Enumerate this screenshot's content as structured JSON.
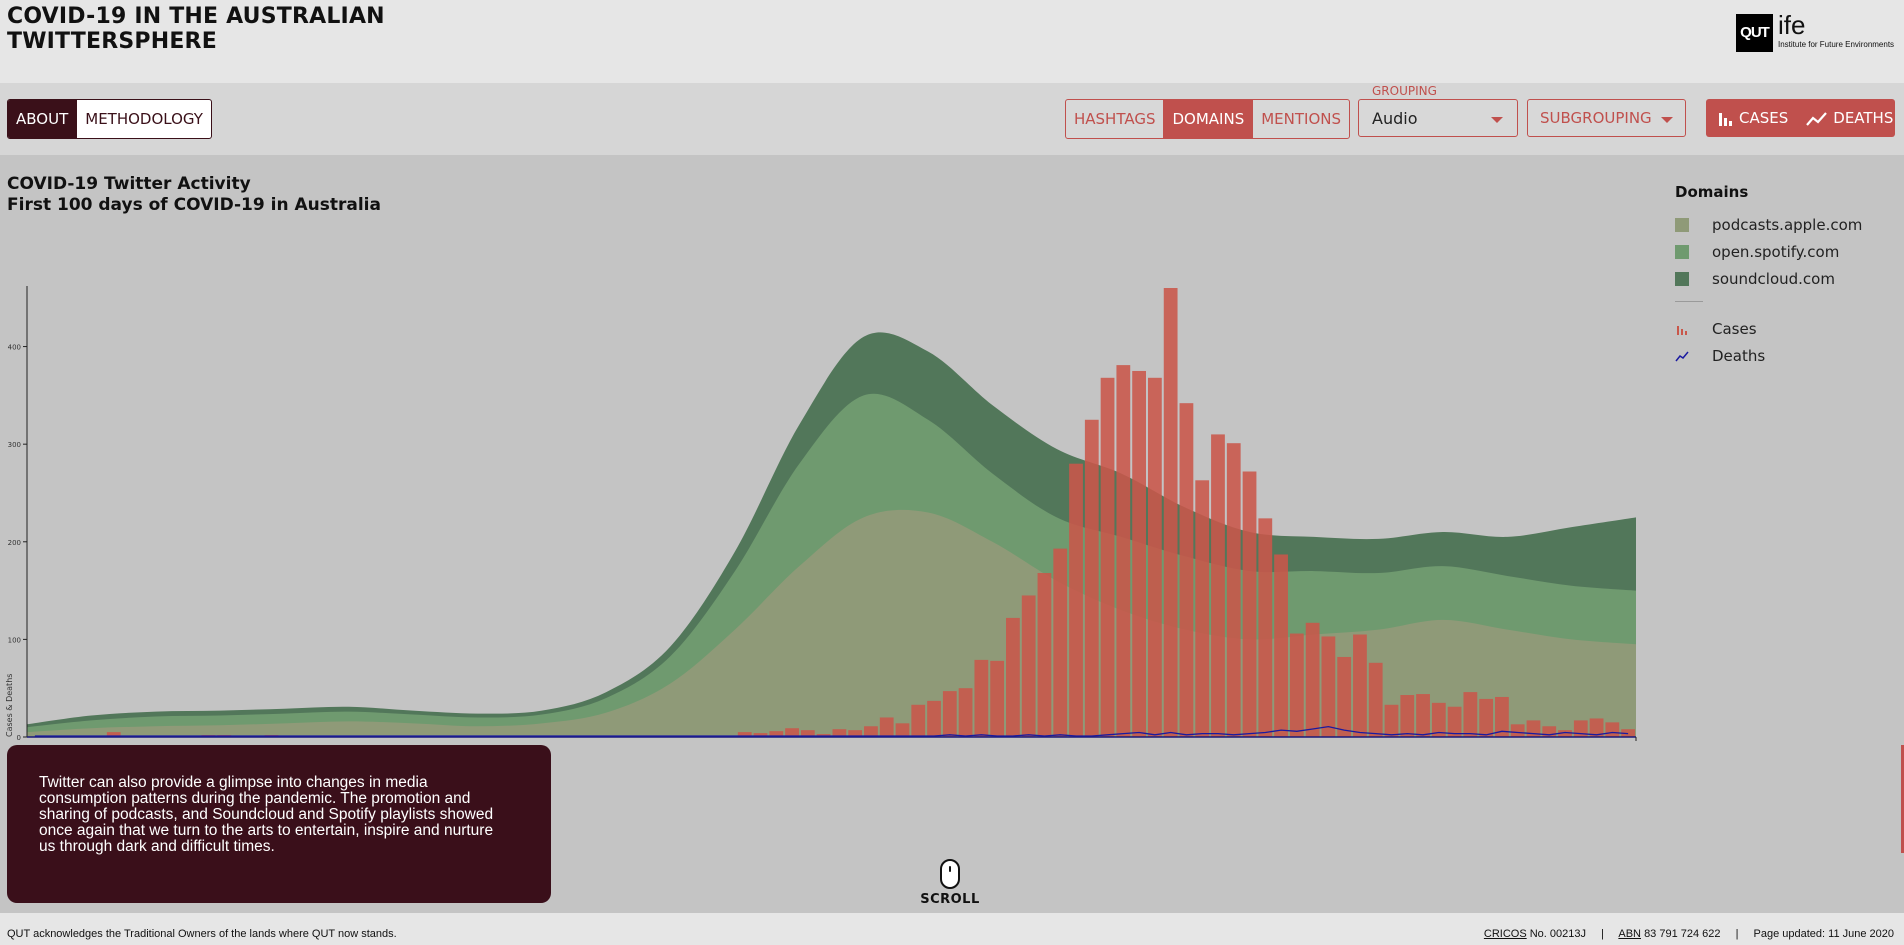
{
  "site": {
    "title_line1": "COVID-19 IN THE AUSTRALIAN",
    "title_line2": "TWITTERSPHERE",
    "logo_box": "QUT",
    "logo_ife": "ife",
    "logo_sub": "Institute for Future Environments"
  },
  "toolbar": {
    "about_label": "ABOUT",
    "methodology_label": "METHODOLOGY",
    "hashtags_label": "HASHTAGS",
    "domains_label": "DOMAINS",
    "mentions_label": "MENTIONS",
    "grouping_label": "GROUPING",
    "grouping_value": "Audio",
    "subgrouping_label": "SUBGROUPING",
    "cases_label": "CASES",
    "deaths_label": "DEATHS",
    "active_view": "DOMAINS",
    "accent_color": "#c0504d",
    "about_color": "#3a1019"
  },
  "chart_heading": {
    "line1": "COVID-19 Twitter Activity",
    "line2": "First 100 days of COVID-19 in Australia"
  },
  "legend": {
    "title": "Domains",
    "items": [
      {
        "label": "podcasts.apple.com",
        "color": "#8f9a78"
      },
      {
        "label": "open.spotify.com",
        "color": "#6f9a6f"
      },
      {
        "label": "soundcloud.com",
        "color": "#52775a"
      }
    ],
    "cases_label": "Cases",
    "deaths_label": "Deaths",
    "cases_color": "#c9574a",
    "deaths_color": "#1a1aa0"
  },
  "chart_data": {
    "type": "area",
    "title": "COVID-19 Twitter Activity",
    "subtitle": "First 100 days of COVID-19 in Australia",
    "ylabel": "Cases & Deaths",
    "ylim": [
      0,
      460
    ],
    "yticks": [
      0,
      100,
      200,
      300,
      400
    ],
    "x": [
      0,
      4,
      8,
      12,
      16,
      20,
      24,
      28,
      32,
      36,
      40,
      44,
      48,
      52,
      56,
      60,
      64,
      68,
      72,
      76,
      80,
      84,
      88,
      92,
      96,
      100
    ],
    "series": [
      {
        "name": "podcasts.apple.com",
        "stack_layer": 1,
        "color": "#8f9a78",
        "values": [
          5,
          9,
          11,
          12,
          14,
          16,
          14,
          11,
          14,
          25,
          55,
          110,
          175,
          225,
          230,
          200,
          160,
          130,
          110,
          100,
          105,
          110,
          120,
          110,
          100,
          95
        ]
      },
      {
        "name": "open.spotify.com",
        "stack_layer": 2,
        "color": "#6f9a6f",
        "values": [
          5,
          8,
          10,
          10,
          10,
          10,
          9,
          9,
          9,
          15,
          28,
          60,
          105,
          125,
          95,
          70,
          65,
          75,
          75,
          70,
          65,
          58,
          55,
          55,
          55,
          55
        ]
      },
      {
        "name": "soundcloud.com",
        "stack_layer": 3,
        "color": "#52775a",
        "values": [
          3,
          5,
          5,
          5,
          5,
          5,
          4,
          4,
          4,
          6,
          10,
          20,
          40,
          60,
          70,
          70,
          70,
          65,
          50,
          40,
          35,
          35,
          35,
          40,
          60,
          75
        ]
      }
    ],
    "cases": {
      "name": "Cases",
      "color": "#c9574a",
      "values": [
        0,
        0,
        0,
        0,
        0,
        5,
        0,
        0,
        0,
        0,
        0,
        2,
        2,
        0,
        0,
        2,
        0,
        0,
        0,
        0,
        0,
        0,
        0,
        0,
        0,
        0,
        0,
        0,
        0,
        0,
        0,
        0,
        0,
        0,
        0,
        0,
        0,
        0,
        0,
        0,
        0,
        0,
        0,
        0,
        0,
        5,
        4,
        6,
        9,
        7,
        3,
        8,
        7,
        11,
        20,
        14,
        33,
        37,
        47,
        50,
        79,
        78,
        122,
        145,
        168,
        193,
        280,
        325,
        368,
        381,
        375,
        368,
        460,
        342,
        263,
        310,
        301,
        272,
        224,
        187,
        106,
        117,
        103,
        82,
        105,
        76,
        33,
        43,
        44,
        35,
        31,
        46,
        39,
        41,
        13,
        17,
        11,
        7,
        17,
        19,
        15,
        8
      ]
    },
    "deaths": {
      "name": "Deaths",
      "color": "#1a1aa0",
      "values": [
        0,
        0,
        0,
        0,
        0,
        0,
        0,
        0,
        0,
        0,
        0,
        0,
        0,
        0,
        0,
        0,
        0,
        0,
        0,
        0,
        0,
        0,
        0,
        0,
        0,
        0,
        0,
        0,
        0,
        0,
        0,
        0,
        0,
        0,
        0,
        0,
        0,
        0,
        0,
        0,
        0,
        0,
        0,
        0,
        0,
        0,
        0,
        0,
        0,
        0,
        0,
        0,
        0,
        0,
        0,
        0,
        0,
        0,
        1,
        0,
        1,
        0,
        0,
        1,
        0,
        1,
        0,
        0,
        1,
        2,
        3,
        1,
        3,
        1,
        2,
        2,
        1,
        2,
        3,
        5,
        4,
        6,
        8,
        5,
        3,
        2,
        1,
        2,
        1,
        3,
        2,
        2,
        1,
        4,
        3,
        2,
        1,
        3,
        2,
        1,
        3,
        2
      ]
    }
  },
  "story_text": "Twitter can also provide a glimpse into changes in media consumption patterns during the pandemic. The promotion and sharing of podcasts, and Soundcloud and Spotify playlists showed once again that we turn to the arts to entertain, inspire and nurture us through dark and difficult times.",
  "scroll_label": "SCROLL",
  "footer": {
    "ack": "QUT acknowledges the Traditional Owners of the lands where QUT now stands.",
    "cricos_label": "CRICOS",
    "cricos_value": "No. 00213J",
    "abn_label": "ABN",
    "abn_value": "83 791 724 622",
    "updated": "Page updated: 11 June 2020"
  }
}
